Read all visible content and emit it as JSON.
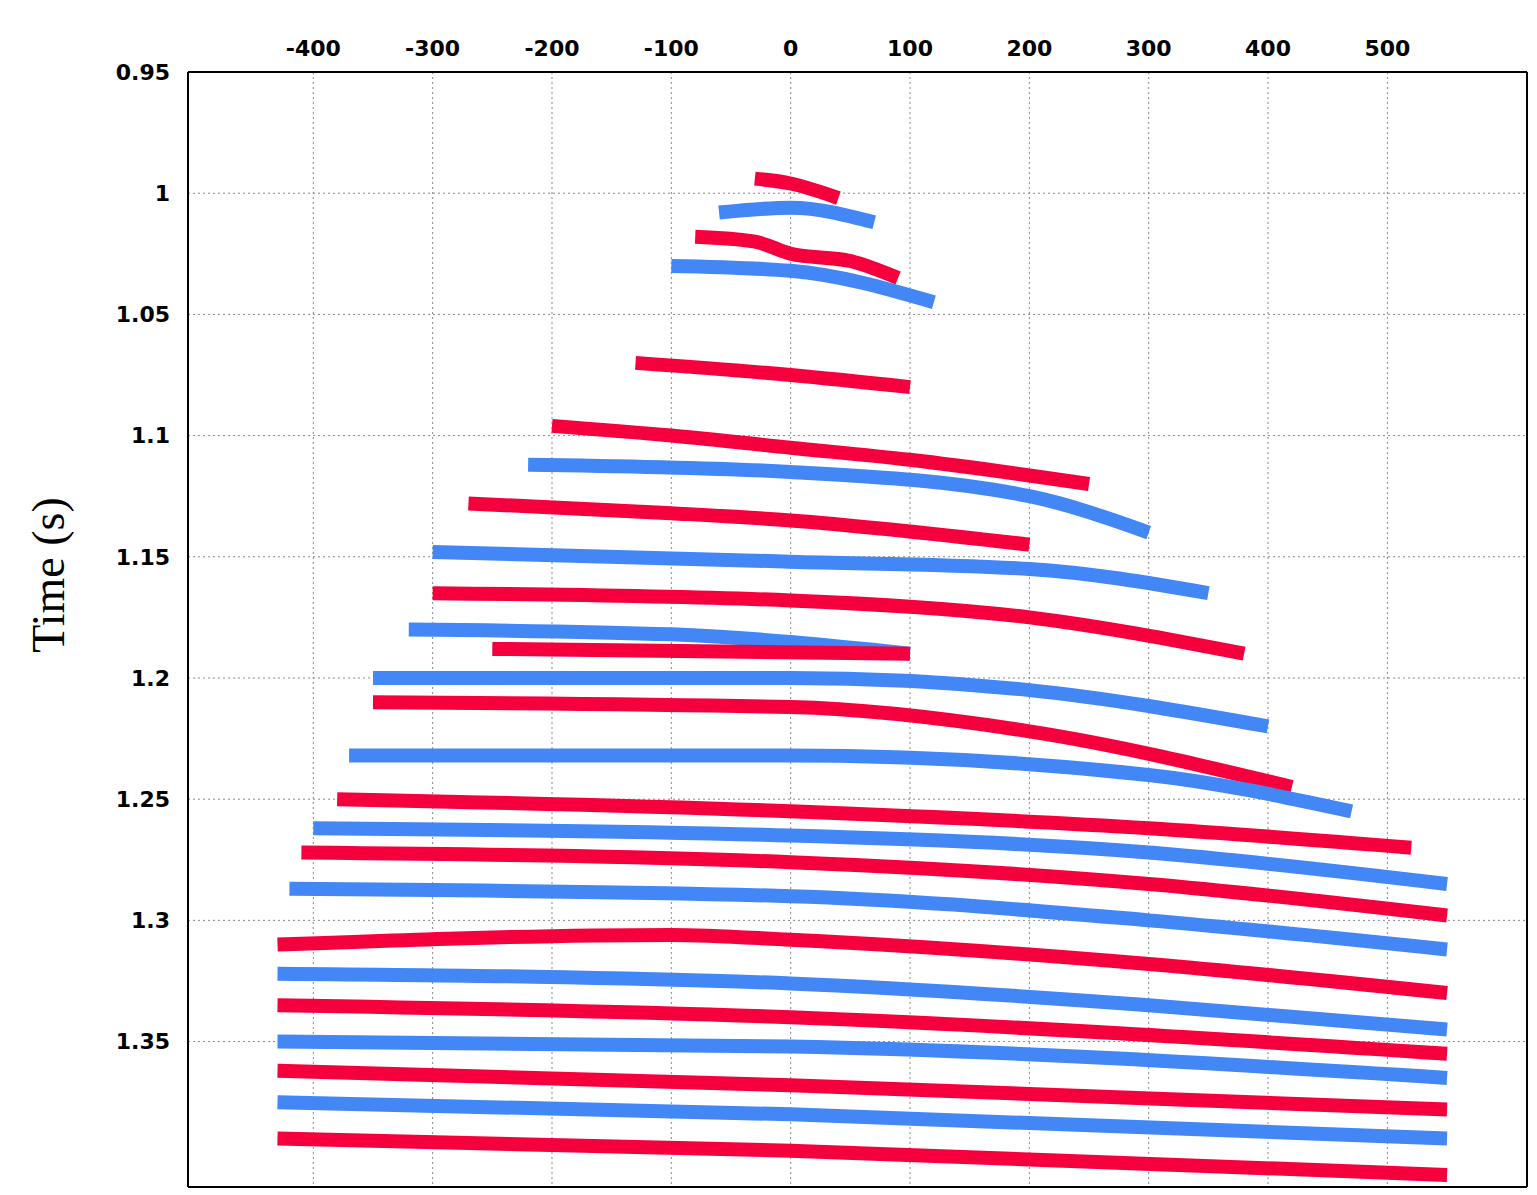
{
  "chart_data": {
    "type": "line",
    "y_label": "Time (s)",
    "xlim": [
      -505,
      617
    ],
    "xticks": [
      -400,
      -300,
      -200,
      -100,
      0,
      100,
      200,
      300,
      400,
      500
    ],
    "ylim": [
      0.95,
      1.41
    ],
    "yticks": [
      0.95,
      1,
      1.05,
      1.1,
      1.15,
      1.2,
      1.25,
      1.3,
      1.35
    ],
    "grid": true,
    "line_style": "solid",
    "marker": "none",
    "series": [
      {
        "color": "#f5003d",
        "x": [
          -30,
          0,
          40
        ],
        "values": [
          0.994,
          0.996,
          1.002
        ]
      },
      {
        "color": "#4287f5",
        "x": [
          -60,
          0,
          70
        ],
        "values": [
          1.008,
          1.006,
          1.012
        ]
      },
      {
        "color": "#f5003d",
        "x": [
          -80,
          -30,
          0,
          50,
          90
        ],
        "values": [
          1.018,
          1.02,
          1.025,
          1.028,
          1.035
        ]
      },
      {
        "color": "#4287f5",
        "x": [
          -100,
          0,
          120
        ],
        "values": [
          1.03,
          1.032,
          1.045
        ]
      },
      {
        "color": "#f5003d",
        "x": [
          -130,
          0,
          100
        ],
        "values": [
          1.07,
          1.075,
          1.08
        ]
      },
      {
        "color": "#f5003d",
        "x": [
          -200,
          -100,
          0,
          100,
          250
        ],
        "values": [
          1.096,
          1.1,
          1.105,
          1.11,
          1.12
        ]
      },
      {
        "color": "#4287f5",
        "x": [
          -220,
          0,
          200,
          300
        ],
        "values": [
          1.112,
          1.115,
          1.125,
          1.14
        ]
      },
      {
        "color": "#f5003d",
        "x": [
          -270,
          -100,
          0,
          200
        ],
        "values": [
          1.128,
          1.132,
          1.135,
          1.145
        ]
      },
      {
        "color": "#4287f5",
        "x": [
          -300,
          0,
          200,
          350
        ],
        "values": [
          1.148,
          1.152,
          1.155,
          1.165
        ]
      },
      {
        "color": "#f5003d",
        "x": [
          -300,
          0,
          200,
          380
        ],
        "values": [
          1.165,
          1.168,
          1.175,
          1.19
        ]
      },
      {
        "color": "#4287f5",
        "x": [
          -320,
          -100,
          100
        ],
        "values": [
          1.18,
          1.182,
          1.19
        ]
      },
      {
        "color": "#f5003d",
        "x": [
          -250,
          100
        ],
        "values": [
          1.188,
          1.19
        ]
      },
      {
        "color": "#4287f5",
        "x": [
          -350,
          0,
          200,
          400
        ],
        "values": [
          1.2,
          1.2,
          1.205,
          1.22
        ]
      },
      {
        "color": "#f5003d",
        "x": [
          -350,
          0,
          200,
          420
        ],
        "values": [
          1.21,
          1.212,
          1.222,
          1.245
        ]
      },
      {
        "color": "#4287f5",
        "x": [
          -370,
          0,
          300,
          470
        ],
        "values": [
          1.232,
          1.232,
          1.24,
          1.255
        ]
      },
      {
        "color": "#f5003d",
        "x": [
          -380,
          0,
          300,
          520
        ],
        "values": [
          1.25,
          1.255,
          1.262,
          1.27
        ]
      },
      {
        "color": "#4287f5",
        "x": [
          -400,
          0,
          300,
          550
        ],
        "values": [
          1.262,
          1.265,
          1.272,
          1.285
        ]
      },
      {
        "color": "#f5003d",
        "x": [
          -410,
          0,
          300,
          550
        ],
        "values": [
          1.272,
          1.276,
          1.285,
          1.298
        ]
      },
      {
        "color": "#4287f5",
        "x": [
          -420,
          0,
          300,
          550
        ],
        "values": [
          1.287,
          1.29,
          1.3,
          1.312
        ]
      },
      {
        "color": "#f5003d",
        "x": [
          -430,
          -100,
          0,
          300,
          550
        ],
        "values": [
          1.31,
          1.306,
          1.308,
          1.318,
          1.33
        ]
      },
      {
        "color": "#4287f5",
        "x": [
          -430,
          0,
          300,
          550
        ],
        "values": [
          1.322,
          1.326,
          1.335,
          1.345
        ]
      },
      {
        "color": "#f5003d",
        "x": [
          -430,
          0,
          550
        ],
        "values": [
          1.335,
          1.34,
          1.355
        ]
      },
      {
        "color": "#4287f5",
        "x": [
          -430,
          0,
          550
        ],
        "values": [
          1.35,
          1.352,
          1.365
        ]
      },
      {
        "color": "#f5003d",
        "x": [
          -430,
          0,
          550
        ],
        "values": [
          1.362,
          1.368,
          1.378
        ]
      },
      {
        "color": "#4287f5",
        "x": [
          -430,
          0,
          550
        ],
        "values": [
          1.375,
          1.38,
          1.39
        ]
      },
      {
        "color": "#f5003d",
        "x": [
          -430,
          0,
          550
        ],
        "values": [
          1.39,
          1.395,
          1.405
        ]
      }
    ]
  }
}
